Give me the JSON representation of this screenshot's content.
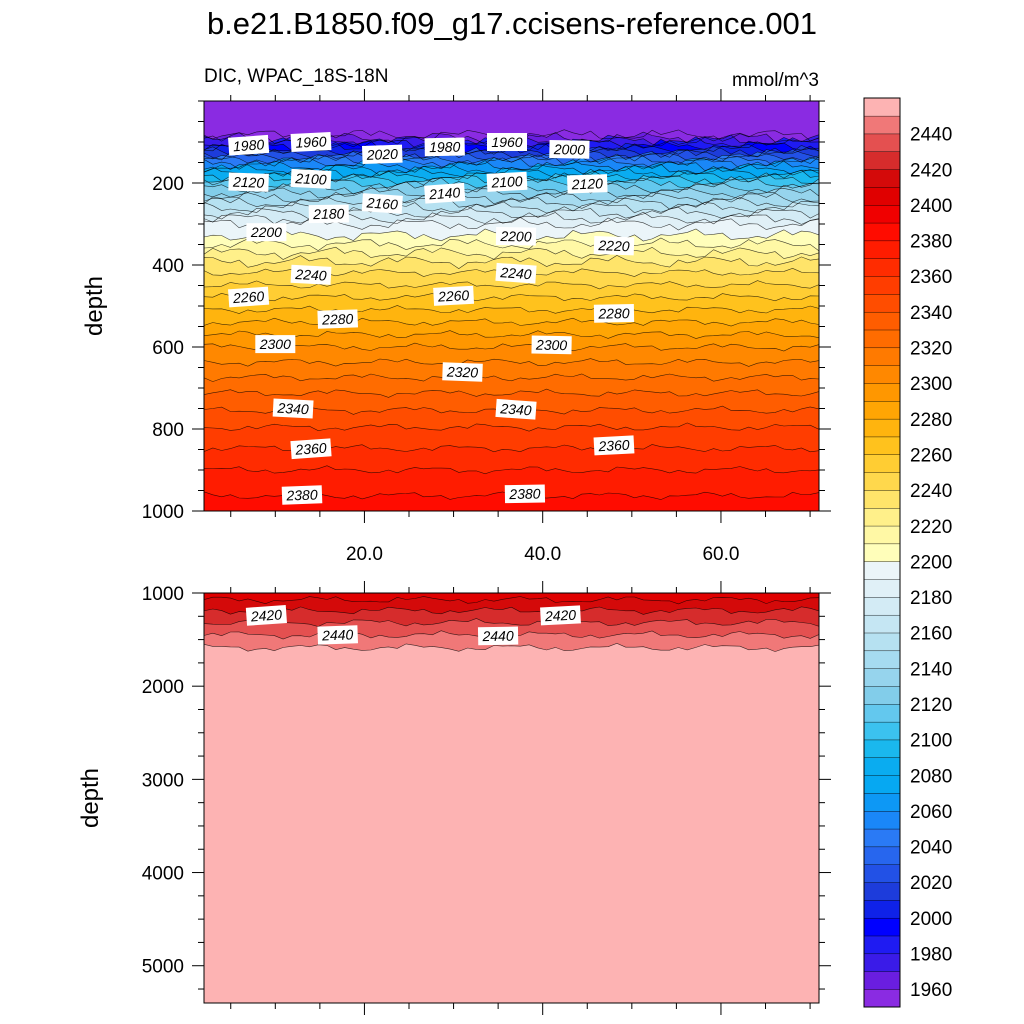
{
  "title": "b.e21.B1850.f09_g17.ccisens-reference.001",
  "subtitle_left": "DIC, WPAC_18S-18N",
  "subtitle_right": "mmol/m^3",
  "chart_data": [
    {
      "type": "contour",
      "panel": "upper",
      "variable": "DIC",
      "region": "WPAC_18S-18N",
      "units": "mmol/m^3",
      "ylabel": "depth",
      "ylim": [
        0,
        1000
      ],
      "y_inverted": true,
      "xlim": [
        2,
        71
      ],
      "x_ticks": [
        20,
        40,
        60
      ],
      "x_tick_labels": [
        "20.0",
        "40.0",
        "60.0"
      ],
      "y_ticks": [
        200,
        400,
        600,
        800,
        1000
      ],
      "y_tick_labels": [
        "200",
        "400",
        "600",
        "800",
        "1000"
      ],
      "depth_profile": [
        {
          "depth": 0,
          "value": 1940
        },
        {
          "depth": 80,
          "value": 1945
        },
        {
          "depth": 100,
          "value": 1975
        },
        {
          "depth": 150,
          "value": 2050
        },
        {
          "depth": 200,
          "value": 2110
        },
        {
          "depth": 260,
          "value": 2160
        },
        {
          "depth": 300,
          "value": 2190
        },
        {
          "depth": 330,
          "value": 2201
        },
        {
          "depth": 400,
          "value": 2234
        },
        {
          "depth": 500,
          "value": 2267
        },
        {
          "depth": 600,
          "value": 2300
        },
        {
          "depth": 700,
          "value": 2327
        },
        {
          "depth": 800,
          "value": 2351
        },
        {
          "depth": 900,
          "value": 2370
        },
        {
          "depth": 1000,
          "value": 2386
        }
      ],
      "contour_labels": [
        {
          "text": "1980",
          "x": 7,
          "depth": 108
        },
        {
          "text": "1960",
          "x": 14,
          "depth": 100
        },
        {
          "text": "2020",
          "x": 22,
          "depth": 130
        },
        {
          "text": "1980",
          "x": 29,
          "depth": 112
        },
        {
          "text": "1960",
          "x": 36,
          "depth": 100
        },
        {
          "text": "2000",
          "x": 43,
          "depth": 118
        },
        {
          "text": "2120",
          "x": 7,
          "depth": 198
        },
        {
          "text": "2100",
          "x": 14,
          "depth": 190
        },
        {
          "text": "2160",
          "x": 22,
          "depth": 250
        },
        {
          "text": "2140",
          "x": 29,
          "depth": 225
        },
        {
          "text": "2100",
          "x": 36,
          "depth": 197
        },
        {
          "text": "2120",
          "x": 45,
          "depth": 202
        },
        {
          "text": "2180",
          "x": 16,
          "depth": 275
        },
        {
          "text": "2200",
          "x": 9,
          "depth": 320
        },
        {
          "text": "2200",
          "x": 37,
          "depth": 330
        },
        {
          "text": "2220",
          "x": 48,
          "depth": 353
        },
        {
          "text": "2240",
          "x": 14,
          "depth": 424
        },
        {
          "text": "2240",
          "x": 37,
          "depth": 420
        },
        {
          "text": "2260",
          "x": 7,
          "depth": 478
        },
        {
          "text": "2260",
          "x": 30,
          "depth": 475
        },
        {
          "text": "2280",
          "x": 17,
          "depth": 532
        },
        {
          "text": "2280",
          "x": 48,
          "depth": 518
        },
        {
          "text": "2300",
          "x": 10,
          "depth": 593
        },
        {
          "text": "2300",
          "x": 41,
          "depth": 595
        },
        {
          "text": "2320",
          "x": 31,
          "depth": 661
        },
        {
          "text": "2340",
          "x": 12,
          "depth": 750
        },
        {
          "text": "2340",
          "x": 37,
          "depth": 752
        },
        {
          "text": "2360",
          "x": 14,
          "depth": 848
        },
        {
          "text": "2360",
          "x": 48,
          "depth": 840
        },
        {
          "text": "2380",
          "x": 13,
          "depth": 961
        },
        {
          "text": "2380",
          "x": 38,
          "depth": 958
        }
      ]
    },
    {
      "type": "contour",
      "panel": "lower",
      "variable": "DIC",
      "units": "mmol/m^3",
      "ylabel": "depth",
      "ylim": [
        1000,
        5400
      ],
      "y_inverted": true,
      "xlim": [
        2,
        71
      ],
      "x_ticks": [
        20,
        40,
        60
      ],
      "y_ticks": [
        1000,
        2000,
        3000,
        4000,
        5000
      ],
      "y_tick_labels": [
        "1000",
        "2000",
        "3000",
        "4000",
        "5000"
      ],
      "depth_profile": [
        {
          "depth": 1000,
          "value": 2402
        },
        {
          "depth": 1100,
          "value": 2413
        },
        {
          "depth": 1250,
          "value": 2425
        },
        {
          "depth": 1450,
          "value": 2440
        },
        {
          "depth": 1600,
          "value": 2451
        },
        {
          "depth": 5400,
          "value": 2460
        }
      ],
      "contour_labels": [
        {
          "text": "2420",
          "x": 9,
          "depth": 1240
        },
        {
          "text": "2420",
          "x": 42,
          "depth": 1240
        },
        {
          "text": "2440",
          "x": 17,
          "depth": 1450
        },
        {
          "text": "2440",
          "x": 35,
          "depth": 1460
        }
      ]
    }
  ],
  "colorbar": {
    "levels": [
      1950,
      1960,
      1970,
      1980,
      1990,
      2000,
      2010,
      2020,
      2030,
      2040,
      2050,
      2060,
      2070,
      2080,
      2090,
      2100,
      2110,
      2120,
      2130,
      2140,
      2150,
      2160,
      2170,
      2180,
      2190,
      2200,
      2210,
      2220,
      2230,
      2240,
      2250,
      2260,
      2270,
      2280,
      2290,
      2300,
      2310,
      2320,
      2330,
      2340,
      2350,
      2360,
      2370,
      2380,
      2390,
      2400,
      2410,
      2420,
      2430,
      2440,
      2450
    ],
    "colors": [
      "#8a2be2",
      "#6a1ee0",
      "#3a1be8",
      "#1f1bf2",
      "#0000ff",
      "#0f22e8",
      "#1d3cdb",
      "#2251e6",
      "#2766ee",
      "#2a7af5",
      "#1a87f8",
      "#0d98f5",
      "#06a8f2",
      "#0aacf0",
      "#1ab8ee",
      "#3bc2ef",
      "#63c8ee",
      "#82cdea",
      "#96d4ed",
      "#a6dbf0",
      "#b6e1f1",
      "#c5e6f3",
      "#d3ebf5",
      "#e0f0f7",
      "#ebf5f9",
      "#fffeba",
      "#fff8a5",
      "#fff08a",
      "#ffe46a",
      "#ffd84c",
      "#ffcd33",
      "#ffc21d",
      "#ffb40e",
      "#ffa504",
      "#ff9700",
      "#ff8800",
      "#ff7a00",
      "#ff6c00",
      "#ff5d00",
      "#ff4d00",
      "#ff3d00",
      "#ff2c00",
      "#ff1c00",
      "#ff0c00",
      "#f00000",
      "#e00000",
      "#d40a0a",
      "#d62c2c",
      "#e45050",
      "#f07878",
      "#fdb3b3"
    ],
    "labels": [
      "1960",
      "1980",
      "2000",
      "2020",
      "2040",
      "2060",
      "2080",
      "2100",
      "2120",
      "2140",
      "2160",
      "2180",
      "2200",
      "2220",
      "2240",
      "2260",
      "2280",
      "2300",
      "2320",
      "2340",
      "2360",
      "2380",
      "2400",
      "2420",
      "2440"
    ]
  }
}
